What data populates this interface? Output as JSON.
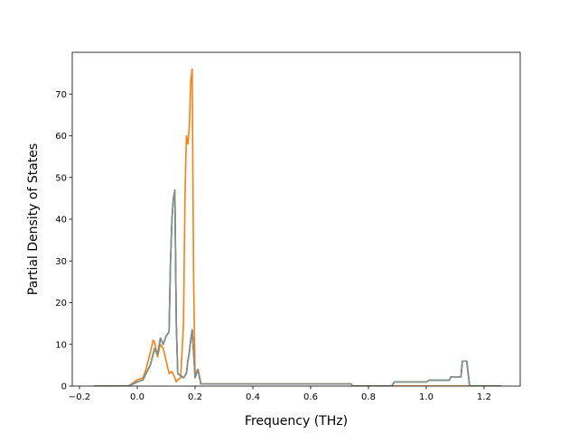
{
  "chart_data": {
    "type": "line",
    "title": "",
    "xlabel": "Frequency (THz)",
    "ylabel": "Partial Density of States",
    "xlim": [
      -0.225,
      1.325
    ],
    "ylim": [
      0,
      80
    ],
    "xticks": [
      -0.2,
      0.0,
      0.2,
      0.4,
      0.6,
      0.8,
      1.0,
      1.2
    ],
    "xtick_labels": [
      "−0.2",
      "0.0",
      "0.2",
      "0.4",
      "0.6",
      "0.8",
      "1.0",
      "1.2"
    ],
    "yticks": [
      0,
      10,
      20,
      30,
      40,
      50,
      60,
      70
    ],
    "ytick_labels": [
      "0",
      "10",
      "20",
      "30",
      "40",
      "50",
      "60",
      "70"
    ],
    "grid": false,
    "legend": "none",
    "series": [
      {
        "color": "#1f77b4",
        "x": [
          -0.15,
          -0.03,
          0.0,
          0.02,
          0.03,
          0.045,
          0.06,
          0.07,
          0.08,
          0.09,
          0.1,
          0.11,
          0.115,
          0.12,
          0.125,
          0.13,
          0.135,
          0.14,
          0.15,
          0.16,
          0.17,
          0.175,
          0.18,
          0.185,
          0.19,
          0.195,
          0.2,
          0.21,
          0.22,
          0.23,
          0.74,
          0.745,
          0.88,
          0.89,
          1.0,
          1.01,
          1.08,
          1.085,
          1.12,
          1.125,
          1.14,
          1.15,
          1.26
        ],
        "y": [
          0,
          0,
          1,
          1.5,
          3,
          5,
          9,
          7.5,
          11.5,
          10,
          12,
          13,
          30,
          40,
          45,
          47,
          15,
          3,
          2.5,
          2,
          3,
          6,
          8,
          11,
          13.5,
          8,
          2,
          4,
          0.5,
          0.5,
          0.5,
          0,
          0,
          1,
          1,
          1.4,
          1.4,
          2.2,
          2.2,
          6,
          6,
          0,
          0
        ]
      },
      {
        "color": "#ff7f0e",
        "x": [
          -0.15,
          -0.03,
          0.0,
          0.02,
          0.03,
          0.045,
          0.055,
          0.06,
          0.07,
          0.08,
          0.09,
          0.1,
          0.11,
          0.12,
          0.13,
          0.135,
          0.14,
          0.15,
          0.16,
          0.165,
          0.17,
          0.175,
          0.18,
          0.185,
          0.19,
          0.195,
          0.2,
          0.21,
          0.22,
          0.23,
          0.74,
          0.745,
          1.26
        ],
        "y": [
          0,
          0,
          1.5,
          2,
          4,
          8,
          11,
          10.5,
          7,
          10,
          9,
          6,
          3,
          3.5,
          2,
          1,
          1.5,
          2,
          15,
          45,
          60,
          58,
          62,
          73,
          76,
          25,
          3,
          4,
          0.5,
          0.5,
          0.5,
          0,
          0
        ]
      },
      {
        "color": "#2ca02c",
        "x": [
          -0.15,
          -0.03,
          0.0,
          0.02,
          0.03,
          0.045,
          0.06,
          0.07,
          0.08,
          0.09,
          0.1,
          0.11,
          0.115,
          0.12,
          0.125,
          0.13,
          0.135,
          0.14,
          0.15,
          0.16,
          0.17,
          0.175,
          0.18,
          0.185,
          0.19,
          0.195,
          0.2,
          0.21,
          0.22,
          0.23,
          0.74,
          0.745,
          0.88,
          0.89,
          1.0,
          1.01,
          1.08,
          1.085,
          1.12,
          1.125,
          1.14,
          1.15,
          1.26
        ],
        "y": [
          0,
          0,
          1,
          1.5,
          3,
          5,
          9,
          7.5,
          11.5,
          10,
          12,
          13,
          30,
          40,
          45,
          47,
          15,
          3,
          2.5,
          2,
          3,
          6,
          8,
          11,
          13.5,
          8,
          2,
          4,
          0.5,
          0.5,
          0.5,
          0,
          0,
          1,
          1,
          1.4,
          1.4,
          2.2,
          2.2,
          6,
          6,
          0,
          0
        ]
      },
      {
        "color": "#8c8c8c",
        "x": [
          -0.15,
          -0.03,
          0.0,
          0.02,
          0.03,
          0.045,
          0.06,
          0.07,
          0.08,
          0.09,
          0.1,
          0.11,
          0.115,
          0.12,
          0.125,
          0.13,
          0.135,
          0.14,
          0.15,
          0.16,
          0.17,
          0.175,
          0.18,
          0.185,
          0.19,
          0.195,
          0.2,
          0.21,
          0.22,
          0.23,
          0.74,
          0.745,
          0.88,
          0.89,
          1.0,
          1.01,
          1.08,
          1.085,
          1.12,
          1.125,
          1.14,
          1.15,
          1.26
        ],
        "y": [
          0,
          0,
          1,
          1.5,
          3,
          5,
          9,
          7.5,
          11.5,
          10,
          12,
          13,
          30,
          40,
          45,
          47,
          15,
          3,
          2.5,
          2,
          3,
          6,
          8,
          11,
          13.5,
          8,
          2,
          4,
          0.5,
          0.5,
          0.5,
          0,
          0,
          1,
          1,
          1.4,
          1.4,
          2.2,
          2.2,
          6,
          6,
          0,
          0
        ]
      }
    ]
  }
}
